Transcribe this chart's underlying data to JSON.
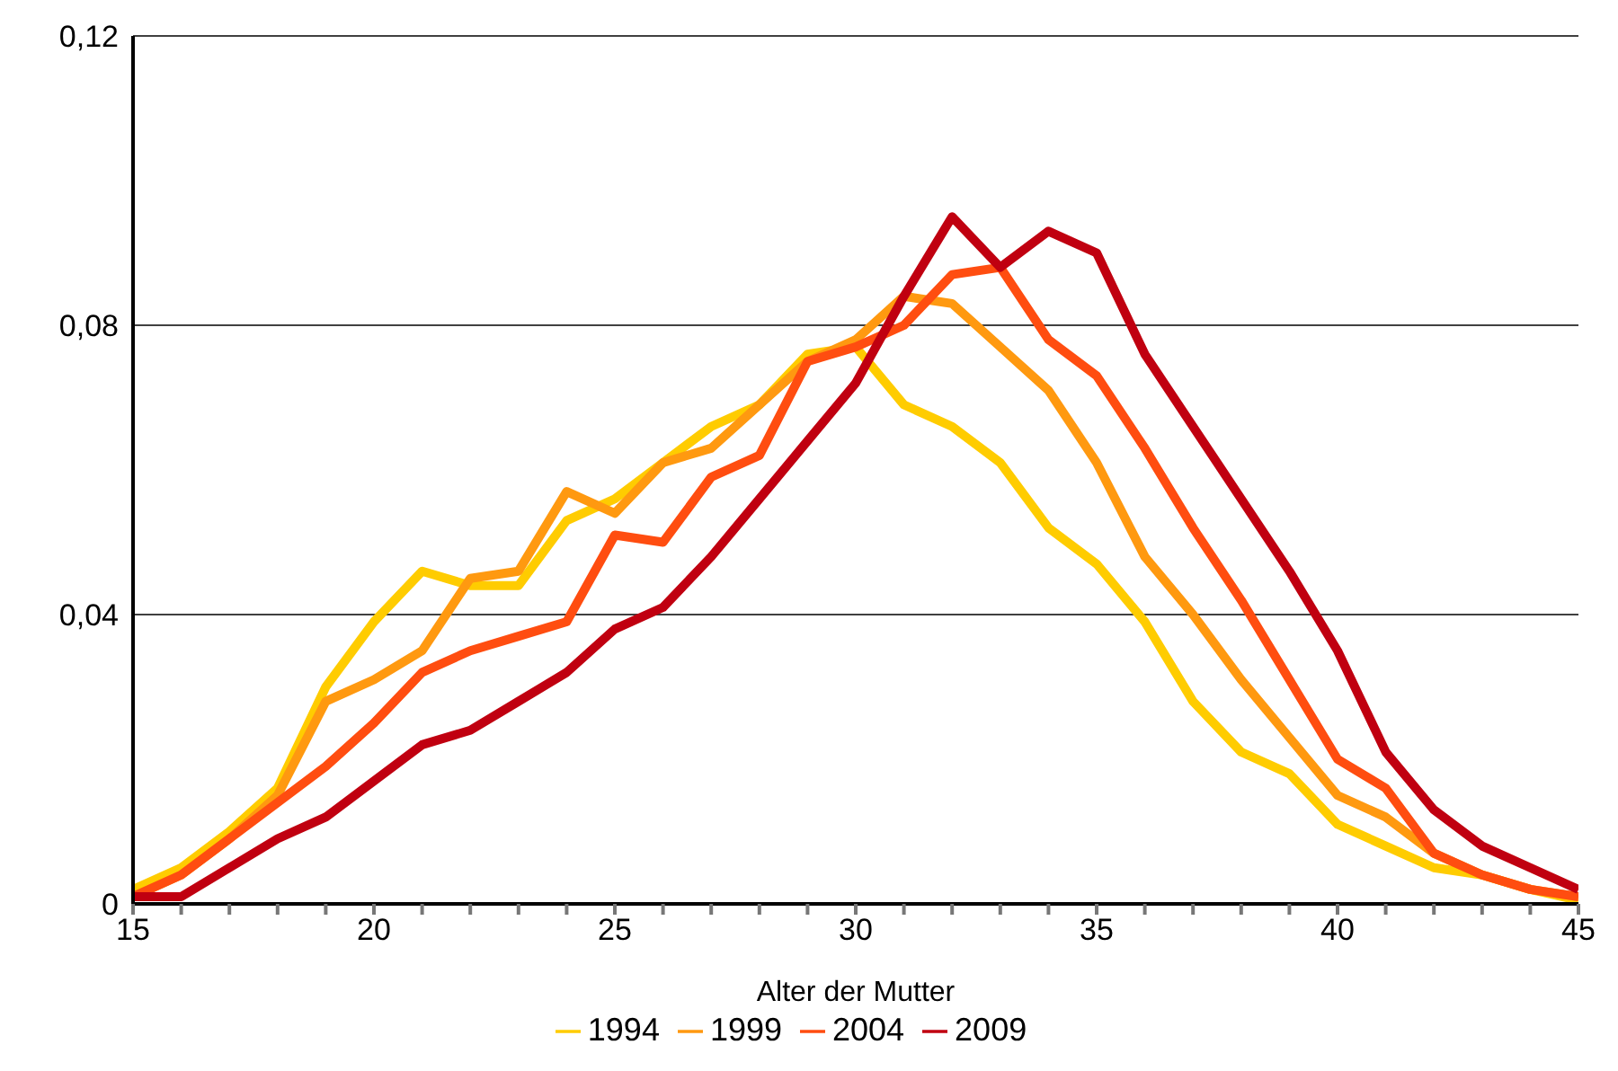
{
  "chart_data": {
    "type": "line",
    "xlabel": "Alter der Mutter",
    "x": [
      15,
      16,
      17,
      18,
      19,
      20,
      21,
      22,
      23,
      24,
      25,
      26,
      27,
      28,
      29,
      30,
      31,
      32,
      33,
      34,
      35,
      36,
      37,
      38,
      39,
      40,
      41,
      42,
      43,
      44,
      45
    ],
    "series": [
      {
        "name": "1994",
        "color": "#ffcc00",
        "values": [
          0.002,
          0.005,
          0.01,
          0.016,
          0.03,
          0.039,
          0.046,
          0.044,
          0.044,
          0.053,
          0.056,
          0.061,
          0.066,
          0.069,
          0.076,
          0.077,
          0.069,
          0.066,
          0.061,
          0.052,
          0.047,
          0.039,
          0.028,
          0.021,
          0.018,
          0.011,
          0.008,
          0.005,
          0.004,
          0.002,
          0.0005
        ]
      },
      {
        "name": "1999",
        "color": "#ff9910",
        "values": [
          0.001,
          0.004,
          0.009,
          0.015,
          0.028,
          0.031,
          0.035,
          0.045,
          0.046,
          0.057,
          0.054,
          0.061,
          0.063,
          0.069,
          0.075,
          0.078,
          0.084,
          0.083,
          0.077,
          0.071,
          0.061,
          0.048,
          0.04,
          0.031,
          0.023,
          0.015,
          0.012,
          0.007,
          0.004,
          0.002,
          0.001
        ]
      },
      {
        "name": "2004",
        "color": "#ff4d10",
        "values": [
          0.001,
          0.004,
          0.009,
          0.014,
          0.019,
          0.025,
          0.032,
          0.035,
          0.037,
          0.039,
          0.051,
          0.05,
          0.059,
          0.062,
          0.075,
          0.077,
          0.08,
          0.087,
          0.088,
          0.078,
          0.073,
          0.063,
          0.052,
          0.042,
          0.031,
          0.02,
          0.016,
          0.007,
          0.004,
          0.002,
          0.001
        ]
      },
      {
        "name": "2009",
        "color": "#c00010",
        "values": [
          0.001,
          0.001,
          0.005,
          0.009,
          0.012,
          0.017,
          0.022,
          0.024,
          0.028,
          0.032,
          0.038,
          0.041,
          0.048,
          0.056,
          0.064,
          0.072,
          0.084,
          0.095,
          0.088,
          0.093,
          0.09,
          0.076,
          0.066,
          0.056,
          0.046,
          0.035,
          0.021,
          0.013,
          0.008,
          0.005,
          0.002
        ]
      }
    ],
    "xlim": [
      15,
      45
    ],
    "xticks": [
      15,
      {
        "value": 16,
        "label": null
      },
      {
        "value": 17,
        "label": null
      },
      {
        "value": 18,
        "label": null
      },
      {
        "value": 19,
        "label": null
      },
      20,
      {
        "value": 21,
        "label": null
      },
      {
        "value": 22,
        "label": null
      },
      {
        "value": 23,
        "label": null
      },
      {
        "value": 24,
        "label": null
      },
      25,
      {
        "value": 26,
        "label": null
      },
      {
        "value": 27,
        "label": null
      },
      {
        "value": 28,
        "label": null
      },
      {
        "value": 29,
        "label": null
      },
      30,
      {
        "value": 31,
        "label": null
      },
      {
        "value": 32,
        "label": null
      },
      {
        "value": 33,
        "label": null
      },
      {
        "value": 34,
        "label": null
      },
      35,
      {
        "value": 36,
        "label": null
      },
      {
        "value": 37,
        "label": null
      },
      {
        "value": 38,
        "label": null
      },
      {
        "value": 39,
        "label": null
      },
      40,
      {
        "value": 41,
        "label": null
      },
      {
        "value": 42,
        "label": null
      },
      {
        "value": 43,
        "label": null
      },
      {
        "value": 44,
        "label": null
      },
      45
    ],
    "ylim": [
      0,
      0.12
    ],
    "yticks": [
      0,
      {
        "value": 0.04,
        "label": "0,04"
      },
      {
        "value": 0.08,
        "label": "0,08"
      },
      {
        "value": 0.12,
        "label": "0,12"
      }
    ],
    "grid": "y",
    "legend": "bottom",
    "marker": "none",
    "line_style": "solid"
  }
}
